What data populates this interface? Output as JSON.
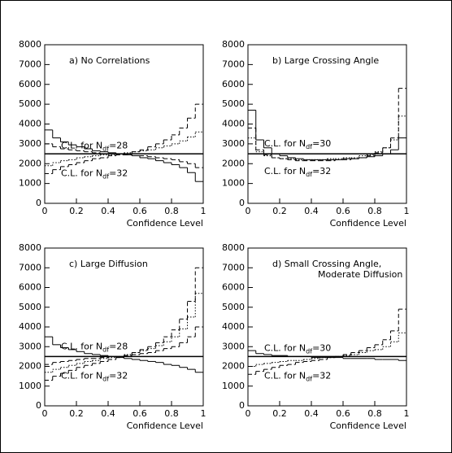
{
  "chart_data": [
    {
      "type": "histogram",
      "title": [
        "a) No Correlations"
      ],
      "xlabel": "Confidence Level",
      "bins": [
        0,
        0.05,
        0.1,
        0.15,
        0.2,
        0.25,
        0.3,
        0.35,
        0.4,
        0.45,
        0.5,
        0.55,
        0.6,
        0.65,
        0.7,
        0.75,
        0.8,
        0.85,
        0.9,
        0.95,
        1
      ],
      "xlim": [
        0,
        1
      ],
      "ylim": [
        0,
        8000
      ],
      "xticks": [
        0,
        0.2,
        0.4,
        0.6,
        0.8,
        1
      ],
      "yticks": [
        0,
        1000,
        2000,
        3000,
        4000,
        5000,
        6000,
        7000,
        8000
      ],
      "hline": 2500,
      "annotations": [
        {
          "text": "C.L. for N",
          "sub": "df",
          "suffix": "=28"
        },
        {
          "text": "C.L. for N",
          "sub": "df",
          "suffix": "=32"
        }
      ],
      "series": [
        {
          "color": "#000000",
          "dash": "solid",
          "values": [
            3700,
            3300,
            3100,
            2950,
            2850,
            2750,
            2650,
            2600,
            2550,
            2500,
            2450,
            2400,
            2300,
            2250,
            2150,
            2050,
            1950,
            1800,
            1550,
            1100
          ]
        },
        {
          "color": "#000000",
          "dash": "dashed",
          "values": [
            3000,
            2850,
            2750,
            2700,
            2650,
            2600,
            2550,
            2500,
            2500,
            2450,
            2450,
            2400,
            2400,
            2350,
            2300,
            2250,
            2200,
            2100,
            2000,
            1800
          ]
        },
        {
          "color": "#000000",
          "dash": "dashed",
          "values": [
            1500,
            1700,
            1850,
            1950,
            2050,
            2150,
            2250,
            2300,
            2400,
            2450,
            2500,
            2600,
            2700,
            2850,
            3000,
            3200,
            3450,
            3800,
            4300,
            5000
          ]
        },
        {
          "color": "#000000",
          "dash": "dotted",
          "values": [
            1900,
            2050,
            2150,
            2200,
            2300,
            2350,
            2400,
            2450,
            2450,
            2500,
            2550,
            2600,
            2650,
            2700,
            2800,
            2900,
            3000,
            3150,
            3350,
            3600
          ]
        }
      ]
    },
    {
      "type": "histogram",
      "title": [
        "b) Large Crossing Angle"
      ],
      "xlabel": "Confidence Level",
      "bins": [
        0,
        0.05,
        0.1,
        0.15,
        0.2,
        0.25,
        0.3,
        0.35,
        0.4,
        0.45,
        0.5,
        0.55,
        0.6,
        0.65,
        0.7,
        0.75,
        0.8,
        0.85,
        0.9,
        0.95,
        1
      ],
      "xlim": [
        0,
        1
      ],
      "ylim": [
        0,
        8000
      ],
      "xticks": [
        0,
        0.2,
        0.4,
        0.6,
        0.8,
        1
      ],
      "yticks": [
        0,
        1000,
        2000,
        3000,
        4000,
        5000,
        6000,
        7000,
        8000
      ],
      "hline": 2500,
      "annotations": [
        {
          "text": "C.L. for N",
          "sub": "df",
          "suffix": "=30"
        },
        {
          "text": "C.L. for N",
          "sub": "df",
          "suffix": "=32"
        }
      ],
      "series": [
        {
          "color": "#000000",
          "dash": "solid",
          "values": [
            4700,
            3200,
            2800,
            2500,
            2400,
            2300,
            2250,
            2200,
            2200,
            2200,
            2200,
            2200,
            2250,
            2250,
            2300,
            2350,
            2400,
            2500,
            2700,
            3300
          ]
        },
        {
          "color": "#000000",
          "dash": "dashed",
          "values": [
            3800,
            2700,
            2450,
            2300,
            2250,
            2200,
            2150,
            2150,
            2150,
            2150,
            2150,
            2200,
            2200,
            2250,
            2300,
            2400,
            2550,
            2800,
            3300,
            5800
          ]
        },
        {
          "color": "#000000",
          "dash": "dotted",
          "values": [
            3300,
            2600,
            2400,
            2300,
            2250,
            2250,
            2200,
            2200,
            2200,
            2200,
            2250,
            2250,
            2300,
            2300,
            2400,
            2450,
            2600,
            2800,
            3200,
            4400
          ]
        }
      ]
    },
    {
      "type": "histogram",
      "title": [
        "c) Large Diffusion"
      ],
      "xlabel": "Confidence Level",
      "bins": [
        0,
        0.05,
        0.1,
        0.15,
        0.2,
        0.25,
        0.3,
        0.35,
        0.4,
        0.45,
        0.5,
        0.55,
        0.6,
        0.65,
        0.7,
        0.75,
        0.8,
        0.85,
        0.9,
        0.95,
        1
      ],
      "xlim": [
        0,
        1
      ],
      "ylim": [
        0,
        8000
      ],
      "xticks": [
        0,
        0.2,
        0.4,
        0.6,
        0.8,
        1
      ],
      "yticks": [
        0,
        1000,
        2000,
        3000,
        4000,
        5000,
        6000,
        7000,
        8000
      ],
      "hline": 2500,
      "annotations": [
        {
          "text": "C.L. for N",
          "sub": "df",
          "suffix": "=28"
        },
        {
          "text": "C.L. for N",
          "sub": "df",
          "suffix": "=32"
        }
      ],
      "series": [
        {
          "color": "#000000",
          "dash": "solid",
          "values": [
            3500,
            3100,
            2950,
            2850,
            2750,
            2650,
            2600,
            2550,
            2500,
            2450,
            2400,
            2350,
            2300,
            2250,
            2200,
            2100,
            2050,
            1950,
            1850,
            1700
          ]
        },
        {
          "color": "#000000",
          "dash": "dashed",
          "values": [
            1300,
            1500,
            1650,
            1800,
            1950,
            2050,
            2150,
            2250,
            2350,
            2450,
            2550,
            2700,
            2850,
            3000,
            3200,
            3500,
            3850,
            4400,
            5300,
            7000
          ]
        },
        {
          "color": "#000000",
          "dash": "dotted",
          "values": [
            1700,
            1850,
            1950,
            2050,
            2150,
            2250,
            2300,
            2400,
            2450,
            2500,
            2600,
            2700,
            2800,
            2900,
            3050,
            3250,
            3500,
            3900,
            4500,
            5700
          ]
        },
        {
          "color": "#000000",
          "dash": "dashed",
          "values": [
            2100,
            2200,
            2250,
            2300,
            2350,
            2400,
            2400,
            2450,
            2500,
            2500,
            2550,
            2600,
            2650,
            2700,
            2800,
            2900,
            3000,
            3200,
            3500,
            4000
          ]
        }
      ]
    },
    {
      "type": "histogram",
      "title": [
        "d) Small Crossing Angle,",
        "Moderate Diffusion"
      ],
      "xlabel": "Confidence Level",
      "bins": [
        0,
        0.05,
        0.1,
        0.15,
        0.2,
        0.25,
        0.3,
        0.35,
        0.4,
        0.45,
        0.5,
        0.55,
        0.6,
        0.65,
        0.7,
        0.75,
        0.8,
        0.85,
        0.9,
        0.95,
        1
      ],
      "xlim": [
        0,
        1
      ],
      "ylim": [
        0,
        8000
      ],
      "xticks": [
        0,
        0.2,
        0.4,
        0.6,
        0.8,
        1
      ],
      "yticks": [
        0,
        1000,
        2000,
        3000,
        4000,
        5000,
        6000,
        7000,
        8000
      ],
      "hline": 2500,
      "annotations": [
        {
          "text": "C.L. for N",
          "sub": "df",
          "suffix": "=30"
        },
        {
          "text": "C.L. for N",
          "sub": "df",
          "suffix": "=32"
        }
      ],
      "series": [
        {
          "color": "#000000",
          "dash": "solid",
          "values": [
            2800,
            2650,
            2600,
            2550,
            2550,
            2500,
            2500,
            2500,
            2450,
            2450,
            2450,
            2450,
            2400,
            2400,
            2400,
            2400,
            2350,
            2350,
            2350,
            2300
          ]
        },
        {
          "color": "#000000",
          "dash": "dashed",
          "values": [
            1600,
            1750,
            1850,
            1950,
            2050,
            2100,
            2200,
            2250,
            2300,
            2350,
            2450,
            2500,
            2600,
            2700,
            2800,
            2950,
            3100,
            3350,
            3800,
            4900
          ]
        },
        {
          "color": "#000000",
          "dash": "dotted",
          "values": [
            2000,
            2100,
            2150,
            2200,
            2250,
            2300,
            2300,
            2350,
            2400,
            2450,
            2450,
            2500,
            2550,
            2600,
            2700,
            2800,
            2850,
            3000,
            3250,
            3700
          ]
        }
      ]
    }
  ]
}
